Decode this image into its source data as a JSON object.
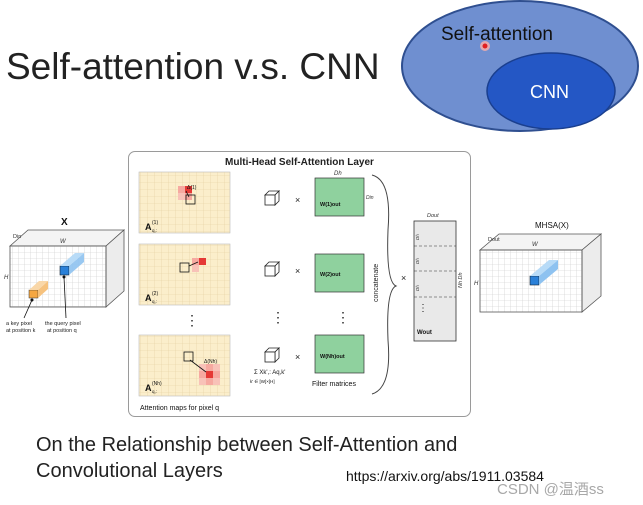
{
  "slide": {
    "title": "Self-attention v.s. CNN",
    "subtitle_line1": "On the Relationship between Self-Attention and",
    "subtitle_line2": "Convolutional Layers",
    "url": "https://arxiv.org/abs/1911.03584",
    "watermark": "CSDN @温酒ss"
  },
  "venn": {
    "outer_label": "Self-attention",
    "inner_label": "CNN",
    "outer_color": "#6f8fd0",
    "inner_color": "#2457c5"
  },
  "figure": {
    "title": "Multi-Head Self-Attention Layer",
    "input_label": "X",
    "input_dim_d": "Din",
    "input_dim_w": "W",
    "input_dim_h": "H",
    "key_pixel_label_1": "a key pixel",
    "key_pixel_label_2": "at position k",
    "query_pixel_label_1": "the query pixel",
    "query_pixel_label_2": "at position q",
    "attn_maps": [
      {
        "label": "A",
        "sup": "(1)",
        "sub": "q,:"
      },
      {
        "label": "A",
        "sup": "(2)",
        "sub": "q,:"
      },
      {
        "label": "A",
        "sup": "(Nh)",
        "sub": "q,:"
      }
    ],
    "delta_labels": [
      "Δ(1)",
      "Δ(Nh)"
    ],
    "filters": [
      "W(1)out",
      "W(2)out",
      "W(Nh)out"
    ],
    "filter_dim_top": "Dh",
    "filter_dim_side": "Din",
    "times": "×",
    "vdots": "⋮",
    "sum_expr": "Σ Xk',: Aq,k'",
    "sum_sub": "k' ∈ [W]×[H]",
    "concatenate": "concatenate",
    "concat_dim_top": "Dout",
    "concat_dim_side": "Nh Dh",
    "concat_w": "Wout",
    "concat_row_labels": [
      "Dh",
      "Dh",
      "Dh"
    ],
    "filter_matrices_label": "Filter matrices",
    "attn_maps_caption": "Attention maps for pixel q",
    "output_label": "MHSA(X)",
    "output_dim_d": "Dout",
    "output_dim_w": "W",
    "output_dim_h": "H"
  },
  "colors": {
    "attn_bg": "#fbeecb",
    "attn_hot": "#e53935",
    "attn_warm": "#f6a9a0",
    "filter_green": "#8fd19e",
    "query_blue": "#2a80d8",
    "key_orange": "#f5a742"
  }
}
